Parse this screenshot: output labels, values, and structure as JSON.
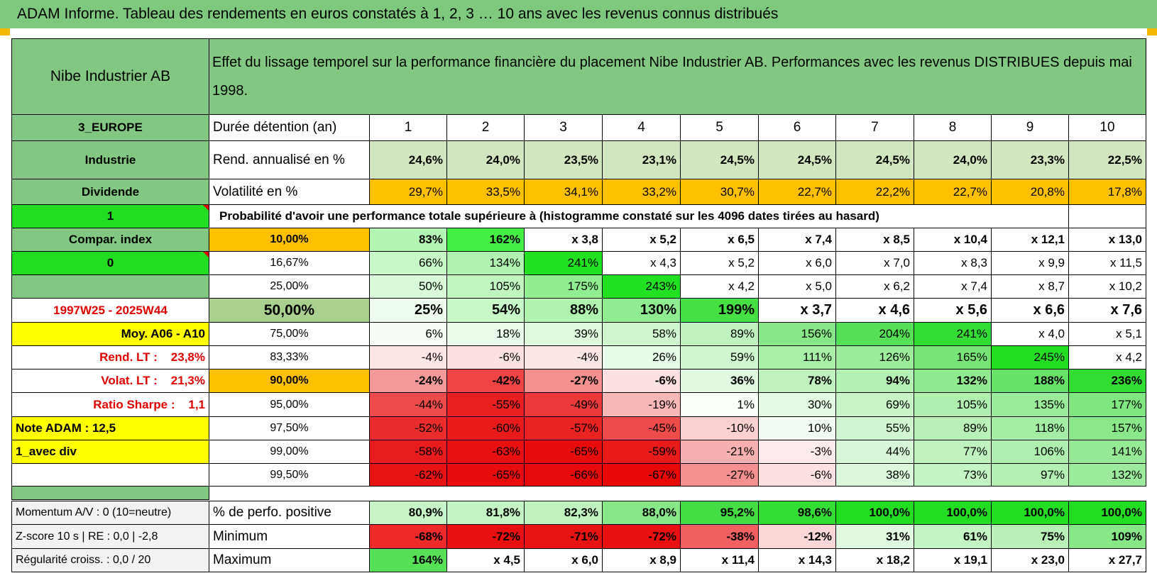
{
  "header": {
    "title": "ADAM Informe. Tableau des rendements en euros constatés à 1, 2, 3 … 10 ans avec les revenus connus distribués"
  },
  "table": {
    "name": "Nibe Industrier AB",
    "description": "Effet du lissage temporel sur la performance financière du placement Nibe Industrier AB. Performances avec les revenus DISTRIBUES depuis mai 1998.",
    "rows": [
      {
        "cells": [
          "3_EUROPE",
          "Durée détention (an)",
          1,
          2,
          3,
          4,
          5,
          6,
          7,
          8,
          9,
          10
        ],
        "fills": [
          "#82c882",
          "#ffffff",
          "#ffffff",
          "#ffffff",
          "#ffffff",
          "#ffffff",
          "#ffffff",
          "#ffffff",
          "#ffffff",
          "#ffffff",
          "#ffffff",
          "#ffffff"
        ]
      },
      {
        "cells": [
          "Industrie",
          "Rend. annualisé en %",
          "24,6%",
          "24,0%",
          "23,5%",
          "23,1%",
          "24,5%",
          "24,5%",
          "24,5%",
          "24,0%",
          "23,3%",
          "22,5%"
        ],
        "fills": [
          "#82c882",
          "#ffffff",
          "#d2e6c0",
          "#d2e6c0",
          "#d2e6c0",
          "#d2e6c0",
          "#d2e6c0",
          "#d2e6c0",
          "#d2e6c0",
          "#d2e6c0",
          "#d2e6c0",
          "#d2e6c0"
        ]
      },
      {
        "cells": [
          "Dividende",
          "Volatilité en %",
          "29,7%",
          "33,5%",
          "34,1%",
          "33,2%",
          "30,7%",
          "22,7%",
          "22,2%",
          "22,7%",
          "20,8%",
          "17,8%"
        ],
        "fills": [
          "#82c882",
          "#ffffff",
          "#ffc000",
          "#ffc000",
          "#ffc000",
          "#ffc000",
          "#ffc000",
          "#ffc000",
          "#ffc000",
          "#ffc000",
          "#ffc000",
          "#ffc000"
        ]
      },
      {
        "cells": [
          "1",
          "Probabilité d'avoir une performance totale supérieure à (histogramme constaté sur les 4096 dates tirées au hasard)"
        ],
        "fills": [
          "#22dd22",
          "#ffffff",
          "#ffffff"
        ]
      },
      {
        "cells": [
          "Compar. index",
          "10,00%",
          "83%",
          "162%",
          "x 3,8",
          "x 5,2",
          "x 6,5",
          "x 7,4",
          "x 8,5",
          "x 10,4",
          "x 12,1",
          "x 13,0"
        ],
        "fills": [
          "#82c882",
          "#ffc000",
          "#b3f5b3",
          "#44ee44",
          "#ffffff",
          "#ffffff",
          "#ffffff",
          "#ffffff",
          "#ffffff",
          "#ffffff",
          "#ffffff",
          "#ffffff"
        ]
      },
      {
        "cells": [
          "0",
          "16,67%",
          "66%",
          "134%",
          "241%",
          "x 4,3",
          "x 5,2",
          "x 6,0",
          "x 7,0",
          "x 8,3",
          "x 9,9",
          "x 11,5"
        ],
        "fills": [
          "#22dd22",
          "#ffffff",
          "#c8f8c8",
          "#b0f2b0",
          "#22e022",
          "#ffffff",
          "#ffffff",
          "#ffffff",
          "#ffffff",
          "#ffffff",
          "#ffffff",
          "#ffffff"
        ]
      },
      {
        "cells": [
          null,
          "25,00%",
          "50%",
          "105%",
          "175%",
          "243%",
          "x 4,2",
          "x 5,0",
          "x 6,2",
          "x 7,4",
          "x 8,7",
          "x 10,2"
        ],
        "fills": [
          "#82c882",
          "#ffffff",
          "#d8fad8",
          "#c0f5c0",
          "#90ee90",
          "#22e022",
          "#ffffff",
          "#ffffff",
          "#ffffff",
          "#ffffff",
          "#ffffff",
          "#ffffff"
        ]
      },
      {
        "cells": [
          "1997W25 - 2025W44",
          "50,00%",
          "25%",
          "54%",
          "88%",
          "130%",
          "199%",
          "x 3,7",
          "x 4,6",
          "x 5,6",
          "x 6,6",
          "x 7,6"
        ],
        "fills": [
          "#ffffff",
          "#a9d08e",
          "#eefcee",
          "#c8f7c8",
          "#b0f2b0",
          "#90ec90",
          "#44e044",
          "#ffffff",
          "#ffffff",
          "#ffffff",
          "#ffffff",
          "#ffffff"
        ]
      },
      {
        "cells": [
          "Moy. A06 - A10",
          "75,00%",
          "6%",
          "18%",
          "39%",
          "58%",
          "89%",
          "156%",
          "204%",
          "241%",
          "x 4,0",
          "x 5,1"
        ],
        "fills": [
          "#ffff00",
          "#ffffff",
          "#f5fdf5",
          "#eafbea",
          "#dff9df",
          "#d0f6d0",
          "#c0f2c0",
          "#88e888",
          "#55e055",
          "#33dd33",
          "#ffffff",
          "#ffffff"
        ]
      },
      {
        "cells": [
          "Rend. LT :    23,8%",
          "83,33%",
          "-4%",
          "-6%",
          "-4%",
          "26%",
          "59%",
          "111%",
          "126%",
          "165%",
          "245%",
          "x 4,2"
        ],
        "fills": [
          "#ffffff",
          "#ffffff",
          "#fde6e6",
          "#fde0e0",
          "#fde6e6",
          "#e8fae8",
          "#d0f6d0",
          "#a8efa8",
          "#9cec9c",
          "#77e677",
          "#22dd22",
          "#ffffff"
        ]
      },
      {
        "cells": [
          "Volat. LT :    21,3%",
          "90,00%",
          "-24%",
          "-42%",
          "-27%",
          "-6%",
          "36%",
          "78%",
          "94%",
          "132%",
          "188%",
          "236%"
        ],
        "fills": [
          "#ffffff",
          "#ffc000",
          "#f59a9a",
          "#ef4444",
          "#f49090",
          "#fde0e0",
          "#e0f9e0",
          "#c0f2c0",
          "#b5f0b5",
          "#90ea90",
          "#66e266",
          "#33dd33"
        ]
      },
      {
        "cells": [
          "Ratio Sharpe :    1,1",
          "95,00%",
          "-44%",
          "-55%",
          "-49%",
          "-19%",
          "1%",
          "30%",
          "69%",
          "105%",
          "135%",
          "177%"
        ],
        "fills": [
          "#ffffff",
          "#ffffff",
          "#ee4b4b",
          "#e82020",
          "#ec3a3a",
          "#f8b8b8",
          "#fafffa",
          "#e4fae4",
          "#c8f4c8",
          "#b0efb0",
          "#9aeb9a",
          "#80e680"
        ]
      },
      {
        "cells": [
          "Note ADAM : 12,5",
          "97,50%",
          "-52%",
          "-60%",
          "-57%",
          "-45%",
          "-10%",
          "10%",
          "55%",
          "89%",
          "118%",
          "157%"
        ],
        "fills": [
          "#ffff00",
          "#ffffff",
          "#ea2c2c",
          "#e81a1a",
          "#e92222",
          "#ee4b4b",
          "#fbd0d0",
          "#f2fcf2",
          "#d0f5d0",
          "#b8f0b8",
          "#a4eda4",
          "#8ae88a"
        ]
      },
      {
        "cells": [
          "1_avec div",
          "99,00%",
          "-58%",
          "-63%",
          "-65%",
          "-59%",
          "-21%",
          "-3%",
          "44%",
          "77%",
          "106%",
          "141%"
        ],
        "fills": [
          "#ffff00",
          "#ffffff",
          "#e81c1c",
          "#e81010",
          "#e80c0c",
          "#e81a1a",
          "#f6b0b0",
          "#fdeaea",
          "#d8f7d8",
          "#c0f2c0",
          "#aeeeae",
          "#96ea96"
        ]
      },
      {
        "cells": [
          null,
          "99,50%",
          "-62%",
          "-65%",
          "-66%",
          "-67%",
          "-27%",
          "-6%",
          "38%",
          "73%",
          "97%",
          "132%"
        ],
        "fills": [
          "#ffffff",
          "#ffffff",
          "#e81414",
          "#e80c0c",
          "#e80a0a",
          "#e80808",
          "#f49090",
          "#fde0e0",
          "#dcf8dc",
          "#c4f3c4",
          "#b4f0b4",
          "#9ceb9c"
        ]
      }
    ],
    "footer_rows": [
      {
        "cells": [
          "Momentum A/V : 0 (10=neutre)",
          "% de perfo. positive",
          "80,9%",
          "81,8%",
          "82,3%",
          "88,0%",
          "95,2%",
          "98,6%",
          "100,0%",
          "100,0%",
          "100,0%",
          "100,0%"
        ],
        "fills": [
          "#f2f2f2",
          "#ffffff",
          "#c8f5c8",
          "#c4f4c4",
          "#c0f3c0",
          "#88e888",
          "#44dd44",
          "#33dd33",
          "#22dd22",
          "#22dd22",
          "#22dd22",
          "#22dd22"
        ]
      },
      {
        "cells": [
          "Z-score 10 s | RE : 0,0 | -2,8",
          "Minimum",
          "-68%",
          "-72%",
          "-71%",
          "-72%",
          "-38%",
          "-12%",
          "31%",
          "61%",
          "75%",
          "109%"
        ],
        "fills": [
          "#f2f2f2",
          "#ffffff",
          "#ee2a2a",
          "#e81010",
          "#e81414",
          "#e81010",
          "#f06060",
          "#fbd6d6",
          "#e0f9e0",
          "#c4f3c4",
          "#b8f0b8",
          "#88e888"
        ]
      },
      {
        "cells": [
          "Régularité croiss. : 0,0 / 20",
          "Maximum",
          "164%",
          "x 4,5",
          "x 6,0",
          "x 8,9",
          "x 11,4",
          "x 14,3",
          "x 18,2",
          "x 19,1",
          "x 23,0",
          "x 27,7"
        ],
        "fills": [
          "#f2f2f2",
          "#ffffff",
          "#55e055",
          "#ffffff",
          "#ffffff",
          "#ffffff",
          "#ffffff",
          "#ffffff",
          "#ffffff",
          "#ffffff",
          "#ffffff",
          "#ffffff"
        ]
      }
    ]
  }
}
